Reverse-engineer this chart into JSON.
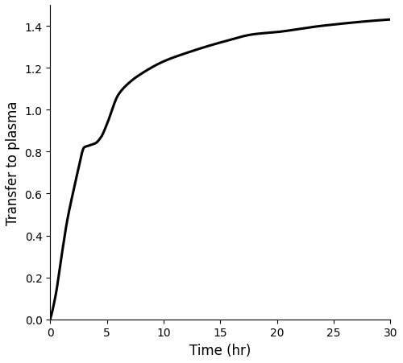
{
  "xlabel": "Time (hr)",
  "ylabel": "Transfer to plasma",
  "xlim": [
    0,
    30
  ],
  "ylim": [
    0,
    1.5
  ],
  "xticks": [
    0,
    5,
    10,
    15,
    20,
    25,
    30
  ],
  "yticks": [
    0,
    0.2,
    0.4,
    0.6,
    0.8,
    1.0,
    1.2,
    1.4
  ],
  "line_color": "#000000",
  "line_width": 2.2,
  "background_color": "#ffffff",
  "figsize": [
    5.0,
    4.52
  ],
  "dpi": 100
}
